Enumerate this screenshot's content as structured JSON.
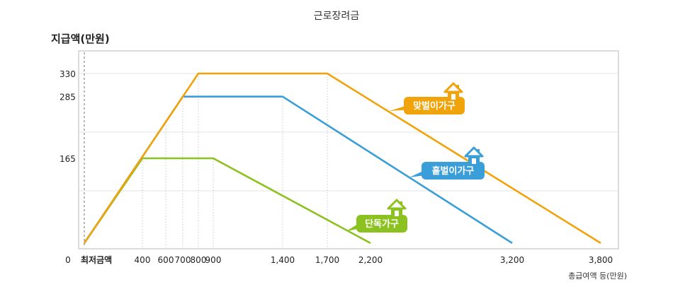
{
  "chart_data": {
    "type": "line",
    "title": "근로장려금",
    "ylabel": "지급액(만원)",
    "xlabel": "총급여액 등(만원)",
    "x_origin_label": "0",
    "x_min_label": "최저금액",
    "x_ticks": [
      {
        "value": 400,
        "label": "400"
      },
      {
        "value": 600,
        "label": "600"
      },
      {
        "value": 700,
        "label": "700"
      },
      {
        "value": 800,
        "label": "800"
      },
      {
        "value": 900,
        "label": "900"
      },
      {
        "value": 1400,
        "label": "1,400"
      },
      {
        "value": 1700,
        "label": "1,700"
      },
      {
        "value": 2200,
        "label": "2,200"
      },
      {
        "value": 3200,
        "label": "3,200"
      },
      {
        "value": 3800,
        "label": "3,800"
      }
    ],
    "y_ticks": [
      {
        "value": 165,
        "label": "165"
      },
      {
        "value": 285,
        "label": "285"
      },
      {
        "value": 330,
        "label": "330"
      }
    ],
    "series": [
      {
        "name": "맞벌이가구",
        "color": "#f0a30a",
        "points": [
          [
            0,
            0
          ],
          [
            800,
            330
          ],
          [
            1700,
            330
          ],
          [
            3800,
            0
          ]
        ]
      },
      {
        "name": "홑벌이가구",
        "color": "#3a9ed8",
        "points": [
          [
            0,
            0
          ],
          [
            700,
            285
          ],
          [
            1400,
            285
          ],
          [
            3200,
            0
          ]
        ]
      },
      {
        "name": "단독가구",
        "color": "#8cc21f",
        "points": [
          [
            0,
            0
          ],
          [
            400,
            165
          ],
          [
            900,
            165
          ],
          [
            2200,
            0
          ]
        ]
      }
    ]
  }
}
